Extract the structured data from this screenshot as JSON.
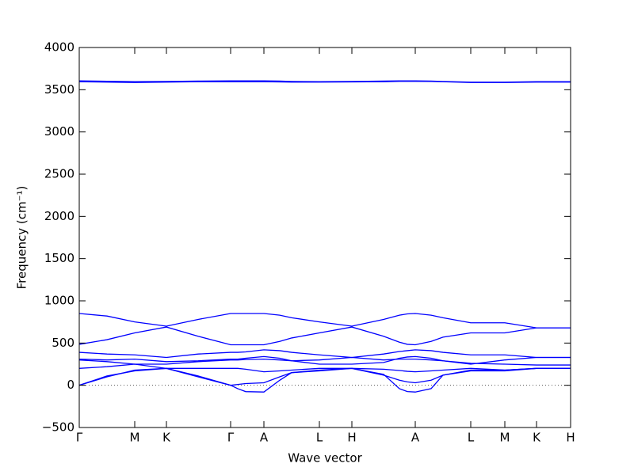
{
  "chart_data": {
    "type": "line",
    "x_label": "Wave vector",
    "y_label": "Frequency (cm⁻¹)",
    "x": [
      0,
      0.35,
      0.7,
      1.1,
      1.5,
      1.91,
      2.0,
      2.1,
      2.33,
      2.53,
      2.68,
      3.03,
      3.44,
      3.84,
      4.04,
      4.14,
      4.24,
      4.44,
      4.59,
      4.94,
      5.37,
      5.77,
      6.2
    ],
    "series": [
      {
        "color": "#0000ff",
        "values": [
          850,
          820,
          750,
          700,
          780,
          850,
          850,
          850,
          850,
          830,
          800,
          750,
          700,
          780,
          830,
          845,
          850,
          830,
          800,
          740,
          740,
          680,
          680
        ]
      },
      {
        "color": "#0000ff",
        "values": [
          485,
          540,
          620,
          690,
          580,
          480,
          480,
          480,
          480,
          520,
          560,
          620,
          690,
          580,
          510,
          485,
          480,
          520,
          570,
          620,
          620,
          680,
          680
        ]
      },
      {
        "color": "#0000ff",
        "values": [
          390,
          370,
          360,
          330,
          370,
          390,
          390,
          395,
          420,
          410,
          390,
          360,
          330,
          370,
          400,
          410,
          420,
          410,
          390,
          360,
          360,
          330,
          330
        ]
      },
      {
        "color": "#0000ff",
        "values": [
          310,
          300,
          310,
          280,
          290,
          310,
          310,
          320,
          340,
          320,
          290,
          250,
          250,
          270,
          320,
          335,
          340,
          320,
          290,
          250,
          300,
          330,
          330
        ]
      },
      {
        "color": "#0000ff",
        "values": [
          300,
          280,
          250,
          250,
          280,
          300,
          300,
          305,
          310,
          300,
          290,
          300,
          330,
          300,
          310,
          310,
          310,
          300,
          290,
          260,
          250,
          240,
          240
        ]
      },
      {
        "color": "#0000ff",
        "values": [
          200,
          220,
          250,
          200,
          200,
          200,
          200,
          190,
          160,
          170,
          180,
          200,
          200,
          190,
          175,
          165,
          160,
          170,
          180,
          200,
          180,
          200,
          200
        ]
      },
      {
        "color": "#0000ff",
        "values": [
          0,
          100,
          180,
          200,
          100,
          0,
          10,
          20,
          30,
          100,
          150,
          180,
          200,
          120,
          60,
          40,
          30,
          60,
          120,
          180,
          180,
          200,
          200
        ]
      },
      {
        "color": "#0000ff",
        "values": [
          0,
          110,
          170,
          200,
          110,
          0,
          -40,
          -75,
          -80,
          60,
          150,
          170,
          200,
          130,
          -40,
          -75,
          -80,
          -40,
          120,
          170,
          170,
          200,
          200
        ]
      },
      {
        "color": "#0000ff",
        "values": [
          3605,
          3600,
          3595,
          3598,
          3602,
          3605,
          3605,
          3605,
          3605,
          3602,
          3598,
          3595,
          3598,
          3602,
          3605,
          3605,
          3605,
          3602,
          3598,
          3590,
          3590,
          3595,
          3595
        ]
      },
      {
        "color": "#0000ff",
        "values": [
          3595,
          3590,
          3585,
          3590,
          3595,
          3595,
          3595,
          3595,
          3595,
          3592,
          3590,
          3590,
          3592,
          3595,
          3600,
          3600,
          3600,
          3598,
          3595,
          3585,
          3585,
          3590,
          3590
        ]
      }
    ],
    "xlim": [
      0,
      6.2
    ],
    "xticks": [
      {
        "value": 0,
        "label": "Γ"
      },
      {
        "value": 0.7,
        "label": "M"
      },
      {
        "value": 1.1,
        "label": "K"
      },
      {
        "value": 1.91,
        "label": "Γ"
      },
      {
        "value": 2.33,
        "label": "A"
      },
      {
        "value": 3.03,
        "label": "L"
      },
      {
        "value": 3.44,
        "label": "H"
      },
      {
        "value": 4.24,
        "label": "A"
      },
      {
        "value": 4.94,
        "label": "L"
      },
      {
        "value": 5.37,
        "label": "M"
      },
      {
        "value": 5.77,
        "label": "K"
      },
      {
        "value": 6.2,
        "label": "H"
      }
    ],
    "ylim": [
      -500,
      4000
    ],
    "yticks": [
      {
        "value": -500,
        "label": "−500"
      },
      0,
      500,
      1000,
      1500,
      2000,
      2500,
      3000,
      3500,
      4000
    ],
    "reference_line": 0
  }
}
